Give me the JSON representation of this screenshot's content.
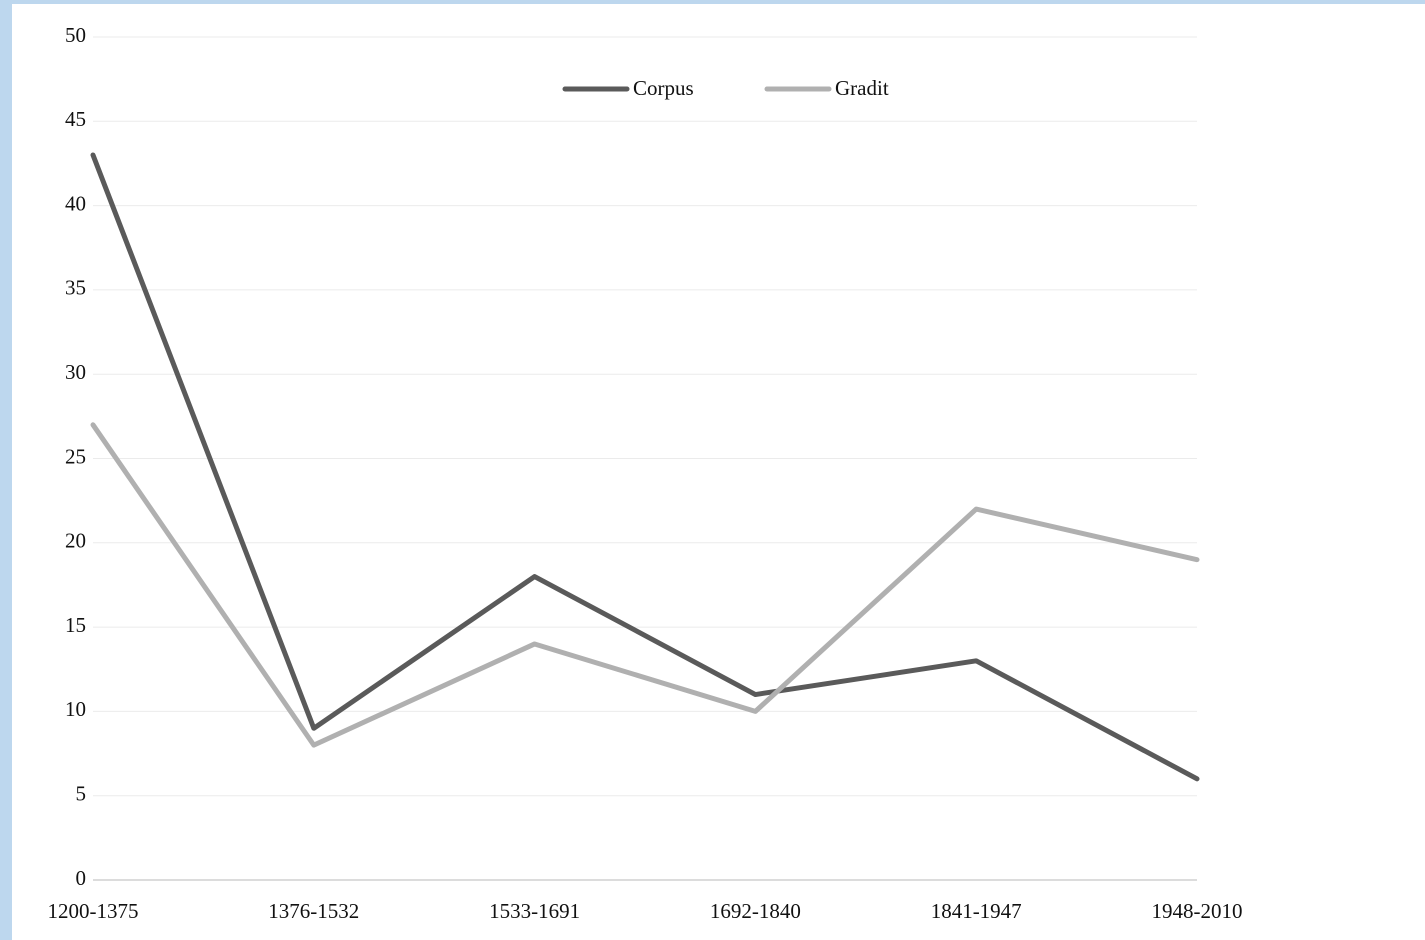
{
  "chart_data": {
    "type": "line",
    "categories": [
      "1200-1375",
      "1376-1532",
      "1533-1691",
      "1692-1840",
      "1841-1947",
      "1948-2010"
    ],
    "series": [
      {
        "name": "Corpus",
        "color": "#5a5a5a",
        "values": [
          43,
          9,
          18,
          11,
          13,
          6
        ]
      },
      {
        "name": "Gradit",
        "color": "#b0b0b0",
        "values": [
          27,
          8,
          14,
          10,
          22,
          19
        ]
      }
    ],
    "ylim": [
      0,
      50
    ],
    "yticks": [
      0,
      5,
      10,
      15,
      20,
      25,
      30,
      35,
      40,
      45,
      50
    ],
    "grid": true,
    "legend": "top"
  }
}
